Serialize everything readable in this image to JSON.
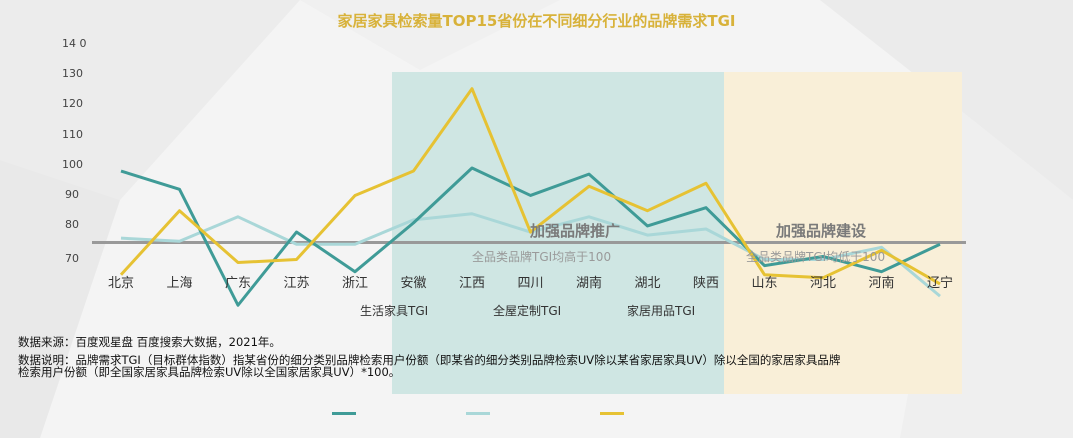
{
  "title": "家居家具检索量TOP15省份在不同细分行业的品牌需求TGI",
  "colors": {
    "title": "#d8b23a",
    "series1": "#3f9b97",
    "series2": "#a9d7d8",
    "series3": "#e6c233",
    "zone_promo": "#cfe6e3",
    "zone_build": "#f9efd8",
    "baseline": "#999999"
  },
  "zones": {
    "promo": {
      "label": "加强品牌推广",
      "sub": "全品类品牌TGI均高于100"
    },
    "build": {
      "label": "加强品牌建设",
      "sub": "全品类品牌TGI均低于100"
    }
  },
  "legend": [
    "生活家具TGI",
    "全屋定制TGI",
    "家居用品TGI"
  ],
  "notes": {
    "source": "数据来源：百度观星盘 百度搜索大数据，2021年。",
    "desc1": "数据说明：品牌需求TGI（目标群体指数）指某省份的细分类别品牌检索用户份额（即某省的细分类别品牌检索UV除以某省家居家具UV）除以全国的家居家具品牌",
    "desc2": "检索用户份额（即全国家居家具品牌检索UV除以全国家居家具UV）*100。"
  },
  "chart_data": {
    "type": "line",
    "title": "家居家具检索量TOP15省份在不同细分行业的品牌需求TGI",
    "categories": [
      "北京",
      "上海",
      "广东",
      "江苏",
      "浙江",
      "安徽",
      "江西",
      "四川",
      "湖南",
      "湖北",
      "陕西",
      "山东",
      "河北",
      "河南",
      "辽宁"
    ],
    "y_ticks": [
      "14 0",
      "130",
      "120",
      "110",
      "100",
      "90",
      "80",
      "70"
    ],
    "ylim": [
      60,
      140
    ],
    "baseline": 75,
    "series": [
      {
        "name": "生活家具TGI",
        "values": [
          99,
          93,
          55,
          79,
          66,
          82,
          100,
          91,
          98,
          81,
          87,
          68,
          71,
          66,
          75
        ]
      },
      {
        "name": "全屋定制TGI",
        "values": [
          77,
          76,
          84,
          75,
          75,
          83,
          85,
          79,
          84,
          78,
          80,
          70,
          70,
          74,
          58
        ]
      },
      {
        "name": "家居用品TGI",
        "values": [
          65,
          86,
          69,
          70,
          91,
          99,
          126,
          79,
          94,
          86,
          95,
          65,
          64,
          73,
          62
        ]
      }
    ]
  }
}
